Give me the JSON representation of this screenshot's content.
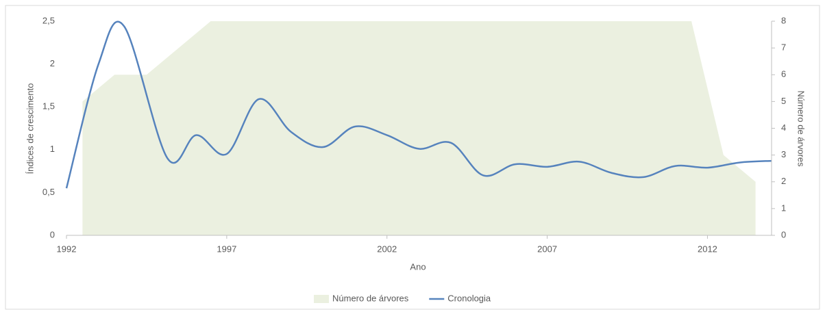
{
  "chart_data": {
    "type": "line-area",
    "xlabel": "Ano",
    "ylabel": "Índices de crescimento",
    "y2label": "Número de árvores",
    "xlim": [
      1992,
      2014
    ],
    "xticks": [
      1992,
      1997,
      2002,
      2007,
      2012
    ],
    "ylim": [
      0,
      2.5
    ],
    "yticks": [
      0,
      {
        "value": 0.5,
        "label": "0,5"
      },
      1,
      {
        "value": 1.5,
        "label": "1,5"
      },
      2,
      {
        "value": 2.5,
        "label": "2,5"
      }
    ],
    "y2lim": [
      0,
      8
    ],
    "y2ticks": [
      0,
      1,
      2,
      3,
      4,
      5,
      6,
      7,
      8
    ],
    "grid": false,
    "legend": "bottom",
    "series": [
      {
        "name": "Número de árvores",
        "type": "area",
        "axis": "y2",
        "color": "#ebf0e0",
        "x": [
          1992.5,
          1993.5,
          1994.5,
          1995.5,
          1996.5,
          1997.5,
          1998.5,
          1999.5,
          2000.5,
          2001.5,
          2002.5,
          2003.5,
          2004.5,
          2005.5,
          2006.5,
          2007.5,
          2008.5,
          2009.5,
          2010.5,
          2011.5,
          2012.5,
          2013.5
        ],
        "values": [
          5,
          6,
          6,
          7,
          8,
          8,
          8,
          8,
          8,
          8,
          8,
          8,
          8,
          8,
          8,
          8,
          8,
          8,
          8,
          8,
          3,
          2
        ]
      },
      {
        "name": "Cronologia",
        "type": "line",
        "axis": "y",
        "color": "#5683bd",
        "x": [
          1992,
          1993,
          1993.8,
          1995.15,
          1996.05,
          1997,
          1998,
          1999,
          2000,
          2001,
          2002,
          2003,
          2004,
          2005,
          2006,
          2007,
          2008,
          2009,
          2010,
          2011,
          2012,
          2013,
          2014
        ],
        "values": [
          0.55,
          2.0,
          2.44,
          0.9,
          1.17,
          0.95,
          1.59,
          1.21,
          1.03,
          1.27,
          1.17,
          1.01,
          1.08,
          0.7,
          0.83,
          0.8,
          0.86,
          0.73,
          0.68,
          0.81,
          0.79,
          0.85,
          0.87
        ]
      }
    ]
  }
}
